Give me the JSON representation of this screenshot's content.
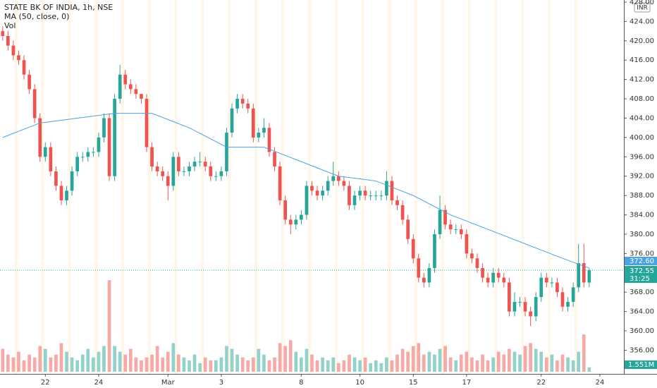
{
  "chart_data": {
    "type": "candlestick",
    "title": "STATE BK OF INDIA, 1h, NSE",
    "currency": "INR",
    "volume_name": "Vol",
    "colors": {
      "up": "#26a69a",
      "down": "#ef5350",
      "ma": "#4aa3df"
    },
    "xlim": [
      -0.5,
      116.5
    ],
    "xticks": [
      {
        "value": 8,
        "label": "22"
      },
      {
        "value": 18,
        "label": "24"
      },
      {
        "value": 31,
        "label": "Mar"
      },
      {
        "value": 41,
        "label": "3"
      },
      {
        "value": 56,
        "label": "8"
      },
      {
        "value": 67,
        "label": "10"
      },
      {
        "value": 77,
        "label": "15"
      },
      {
        "value": 87,
        "label": "17"
      },
      {
        "value": 101,
        "label": "22"
      },
      {
        "value": 112,
        "label": "24"
      }
    ],
    "ylim": [
      351.1,
      428
    ],
    "yticks": [
      {
        "value": 356,
        "label": "356.00"
      },
      {
        "value": 360,
        "label": "360.00"
      },
      {
        "value": 364,
        "label": "364.00"
      },
      {
        "value": 368,
        "label": "368.00"
      },
      {
        "value": 376,
        "label": "376.00"
      },
      {
        "value": 380,
        "label": "380.00"
      },
      {
        "value": 384,
        "label": "384.00"
      },
      {
        "value": 388,
        "label": "388.00"
      },
      {
        "value": 392,
        "label": "392.00"
      },
      {
        "value": 396,
        "label": "396.00"
      },
      {
        "value": 400,
        "label": "400.00"
      },
      {
        "value": 404,
        "label": "404.00"
      },
      {
        "value": 408,
        "label": "408.00"
      },
      {
        "value": 412,
        "label": "412.00"
      },
      {
        "value": 416,
        "label": "416.00"
      },
      {
        "value": 420,
        "label": "420.00"
      },
      {
        "value": 424,
        "label": "424.00"
      },
      {
        "value": 428,
        "label": "428.00"
      }
    ],
    "vlim": [
      0,
      32
    ],
    "open": [
      422,
      421,
      419,
      417,
      416,
      413,
      410,
      404,
      396,
      398,
      393,
      390,
      387,
      389,
      393,
      396,
      396,
      397,
      397,
      400,
      404,
      392,
      408,
      413,
      411,
      410,
      409,
      408,
      398,
      394,
      393,
      392,
      390,
      396,
      393,
      393,
      394,
      395,
      395,
      394,
      392,
      392,
      393,
      401,
      406,
      408,
      407,
      406,
      400,
      401,
      402,
      397,
      394,
      387,
      383,
      382,
      383,
      384,
      390,
      389,
      388,
      389,
      391,
      392,
      391,
      390,
      386,
      388,
      389,
      388,
      388,
      388,
      388,
      391,
      387,
      386,
      383,
      379,
      375,
      371,
      370,
      373,
      380,
      385,
      382,
      381,
      381,
      380,
      376,
      375,
      373,
      371,
      370,
      372,
      371,
      370,
      364,
      366,
      366,
      364,
      363,
      367,
      371,
      370,
      370,
      368,
      365,
      366,
      369,
      374,
      370
    ],
    "high": [
      423,
      422,
      420,
      418,
      417,
      414,
      411,
      405,
      399,
      399,
      394,
      391,
      390,
      394,
      397,
      397,
      398,
      398,
      401,
      405,
      405,
      409,
      415,
      414,
      412,
      411,
      409,
      409,
      399,
      395,
      394,
      393,
      397,
      397,
      394,
      395,
      396,
      397,
      396,
      395,
      393,
      394,
      402,
      407,
      409,
      409,
      408,
      407,
      402,
      404,
      403,
      398,
      395,
      388,
      384,
      384,
      385,
      391,
      391,
      390,
      390,
      392,
      395,
      393,
      392,
      391,
      389,
      390,
      390,
      389,
      389,
      389,
      393,
      392,
      388,
      387,
      384,
      380,
      376,
      372,
      374,
      381,
      388,
      386,
      383,
      382,
      382,
      381,
      377,
      376,
      374,
      372,
      373,
      373,
      372,
      371,
      368,
      367,
      367,
      365,
      368,
      372,
      372,
      371,
      371,
      369,
      367,
      370,
      378,
      378,
      373
    ],
    "low": [
      420,
      418,
      416,
      415,
      412,
      409,
      403,
      395,
      395,
      392,
      389,
      386,
      386,
      388,
      392,
      395,
      395,
      396,
      396,
      399,
      391,
      391,
      407,
      410,
      409,
      408,
      407,
      397,
      393,
      392,
      391,
      387,
      389,
      392,
      392,
      392,
      393,
      394,
      393,
      391,
      391,
      391,
      392,
      400,
      405,
      406,
      405,
      399,
      399,
      400,
      396,
      393,
      386,
      382,
      380,
      381,
      382,
      383,
      388,
      387,
      387,
      388,
      390,
      390,
      389,
      385,
      385,
      387,
      387,
      387,
      387,
      387,
      387,
      386,
      385,
      382,
      378,
      374,
      370,
      369,
      369,
      372,
      379,
      381,
      380,
      380,
      379,
      375,
      374,
      372,
      370,
      369,
      369,
      370,
      369,
      363,
      363,
      365,
      363,
      361,
      362,
      366,
      369,
      369,
      367,
      364,
      364,
      365,
      368,
      369,
      369
    ],
    "close": [
      421,
      419,
      417,
      416,
      413,
      410,
      404,
      396,
      398,
      393,
      390,
      387,
      389,
      393,
      396,
      396,
      397,
      397,
      400,
      404,
      392,
      408,
      413,
      411,
      410,
      409,
      408,
      398,
      394,
      393,
      392,
      390,
      396,
      393,
      393,
      394,
      395,
      395,
      394,
      392,
      392,
      393,
      401,
      406,
      408,
      407,
      406,
      400,
      401,
      402,
      397,
      394,
      387,
      383,
      382,
      383,
      384,
      390,
      389,
      388,
      389,
      391,
      392,
      391,
      390,
      386,
      388,
      389,
      388,
      388,
      388,
      388,
      391,
      387,
      386,
      383,
      379,
      375,
      371,
      370,
      373,
      380,
      385,
      382,
      381,
      381,
      380,
      376,
      375,
      373,
      371,
      370,
      372,
      371,
      370,
      364,
      366,
      366,
      364,
      363,
      367,
      371,
      370,
      370,
      368,
      365,
      366,
      369,
      374,
      370,
      372.55
    ],
    "volume": [
      8,
      6,
      5,
      7,
      4,
      6,
      5,
      9,
      8,
      5,
      6,
      10,
      7,
      5,
      4,
      6,
      8,
      5,
      7,
      9,
      32,
      9,
      7,
      6,
      8,
      5,
      4,
      5,
      6,
      9,
      5,
      7,
      10,
      6,
      5,
      4,
      6,
      3,
      5,
      4,
      4,
      5,
      9,
      8,
      6,
      5,
      4,
      5,
      8,
      6,
      4,
      5,
      10,
      9,
      11,
      7,
      5,
      8,
      6,
      4,
      5,
      4,
      5,
      3,
      4,
      6,
      5,
      4,
      5,
      3,
      4,
      3,
      5,
      4,
      6,
      8,
      7,
      9,
      10,
      6,
      7,
      6,
      8,
      9,
      5,
      4,
      6,
      7,
      5,
      4,
      6,
      4,
      5,
      7,
      6,
      8,
      7,
      6,
      9,
      10,
      8,
      7,
      5,
      6,
      4,
      6,
      5,
      4,
      7,
      13,
      1.551
    ],
    "ma": {
      "name": "MA (50, close, 0)",
      "x": [
        0,
        7,
        14,
        21,
        28,
        35,
        42,
        49,
        56,
        63,
        70,
        77,
        84,
        91,
        98,
        105,
        110
      ],
      "values": [
        400,
        403,
        404,
        405,
        405,
        402,
        398,
        398,
        395,
        392,
        391,
        388,
        384,
        381,
        378,
        375,
        373
      ]
    },
    "price_label": {
      "value": 372.55,
      "label": "372.55"
    },
    "ma_label": {
      "value": 372.6,
      "label": "372.60"
    },
    "countdown": "31:25",
    "volume_label": {
      "value": 1.551,
      "label": "1.551M"
    }
  }
}
